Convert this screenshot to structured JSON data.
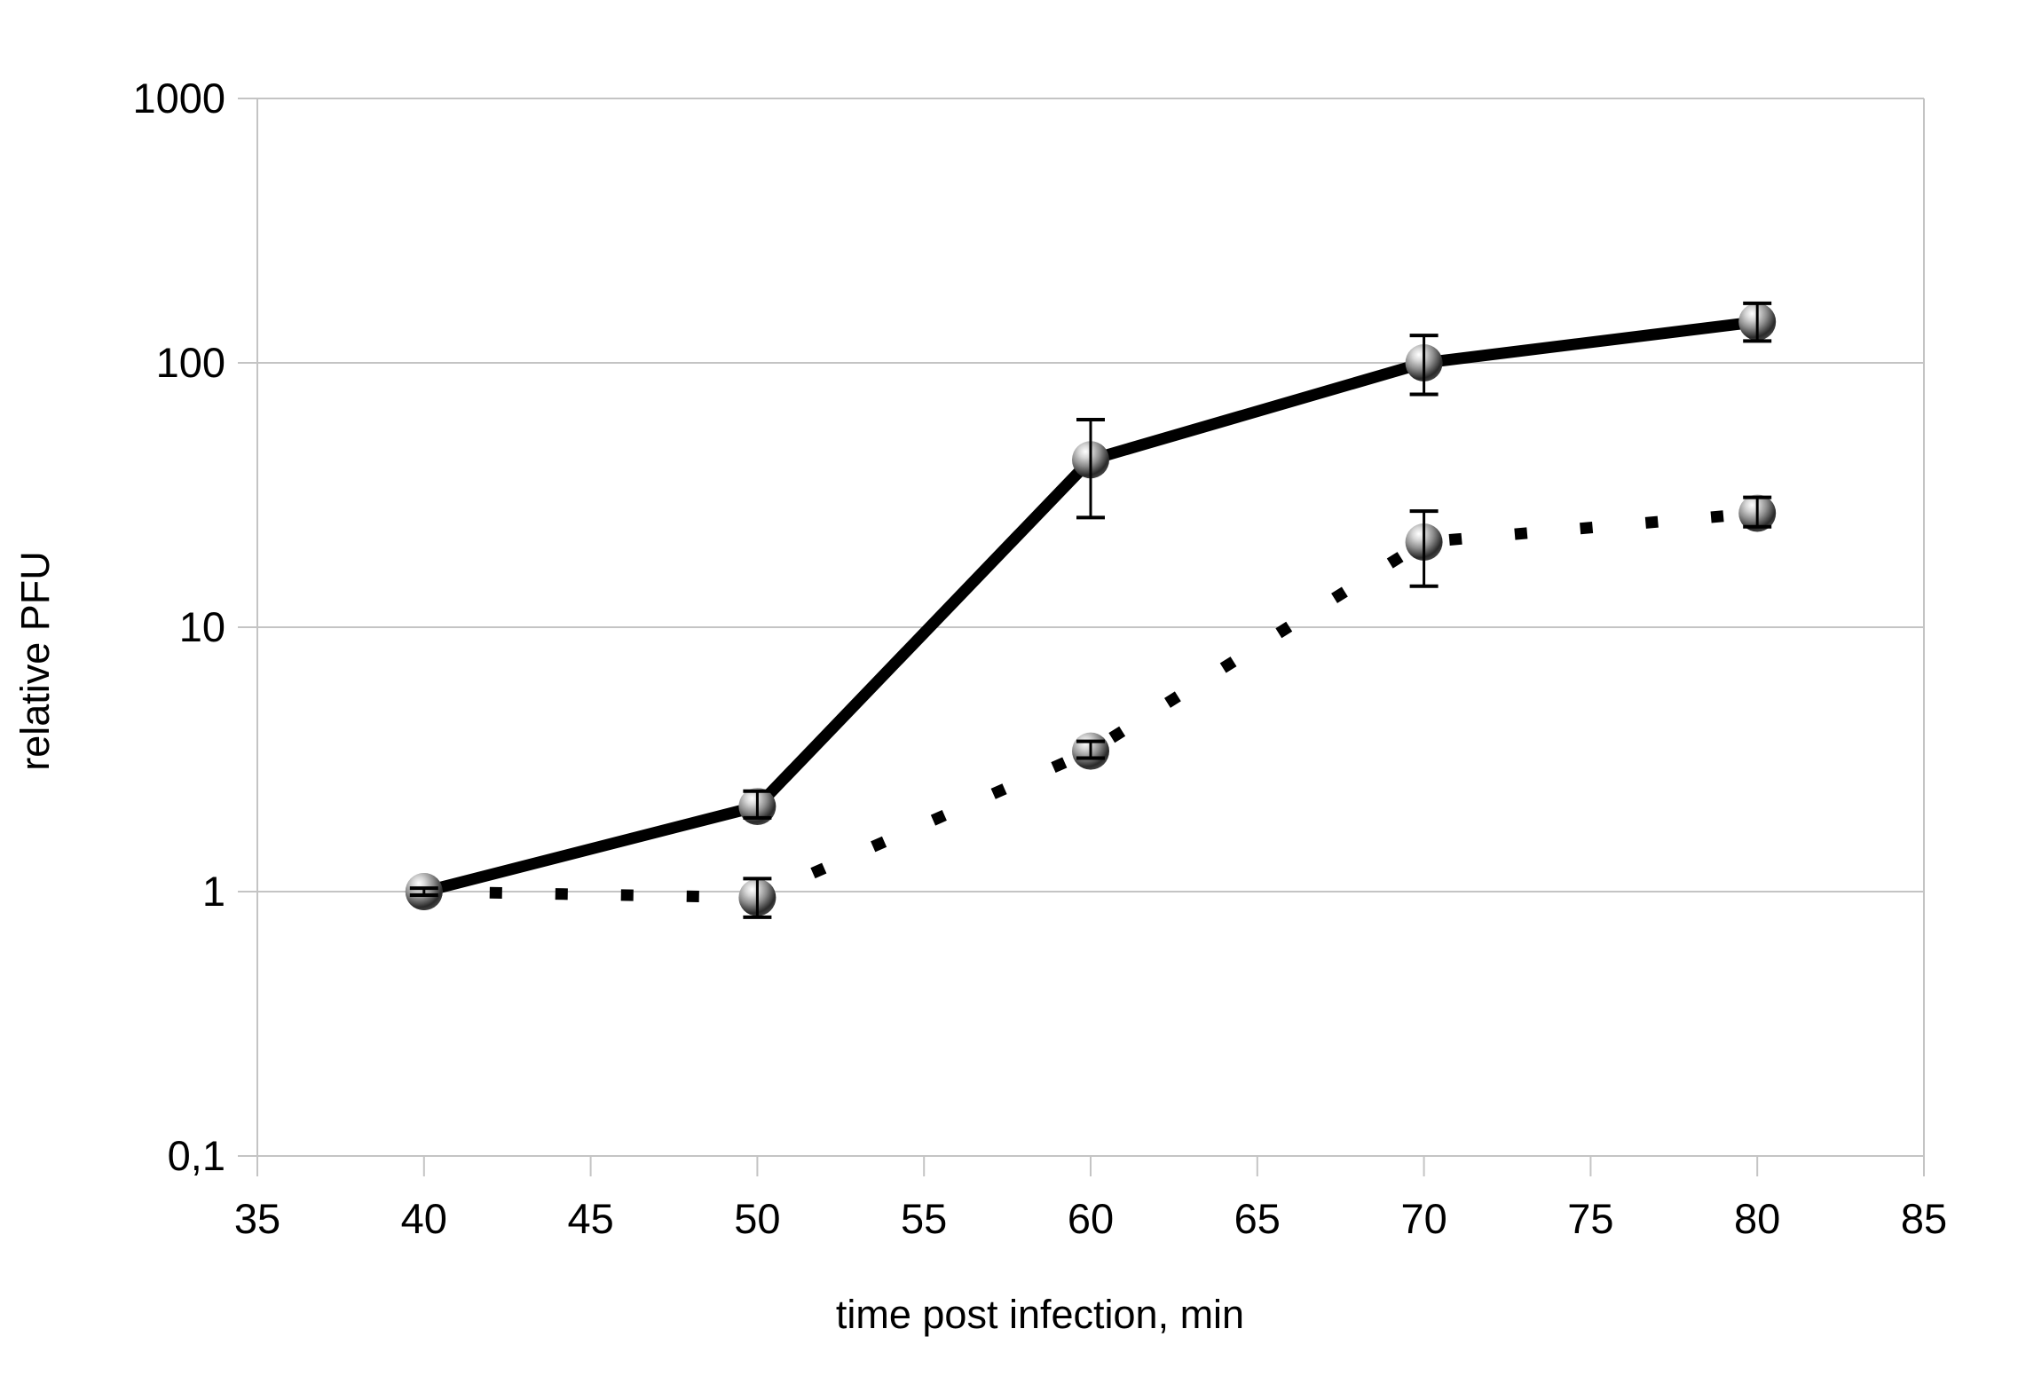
{
  "chart_data": {
    "type": "line",
    "title": "",
    "xlabel": "time post infection, min",
    "ylabel": "relative PFU",
    "x_ticks": [
      35,
      40,
      45,
      50,
      55,
      60,
      65,
      70,
      75,
      80,
      85
    ],
    "x_tick_labels": [
      "35",
      "40",
      "45",
      "50",
      "55",
      "60",
      "65",
      "70",
      "75",
      "80",
      "85"
    ],
    "xlim": [
      35,
      85
    ],
    "y_scale": "log",
    "y_ticks": [
      0.1,
      1,
      10,
      100,
      1000
    ],
    "y_tick_labels": [
      "0,1",
      "1",
      "10",
      "100",
      "1000"
    ],
    "ylim": [
      0.1,
      1000
    ],
    "grid": "horizontal-decades-only",
    "legend": "none",
    "colors": {
      "series_line": "#000000",
      "grid_line": "#c4c4c4",
      "text": "#000000",
      "error_bar": "#000000",
      "marker_highlight": "#ffffff",
      "marker_mid": "#9a9a9a",
      "marker_shadow": "#1f1f1f"
    },
    "series": [
      {
        "name": "solid line series",
        "marker": "gray-sphere",
        "line_style": "solid",
        "x": [
          40,
          50,
          60,
          70,
          80
        ],
        "y": [
          1,
          2.1,
          43,
          100,
          143
        ],
        "err_low": [
          0.97,
          1.9,
          26,
          76,
          121
        ],
        "err_high": [
          1.03,
          2.4,
          61,
          127,
          168
        ]
      },
      {
        "name": "dotted line series",
        "marker": "gray-sphere",
        "line_style": "dotted",
        "x": [
          40,
          50,
          60,
          70,
          80
        ],
        "y": [
          1,
          0.95,
          3.4,
          21,
          27
        ],
        "err_low": [
          null,
          0.8,
          3.2,
          14.3,
          24
        ],
        "err_high": [
          null,
          1.12,
          3.7,
          27.5,
          31
        ]
      }
    ]
  }
}
